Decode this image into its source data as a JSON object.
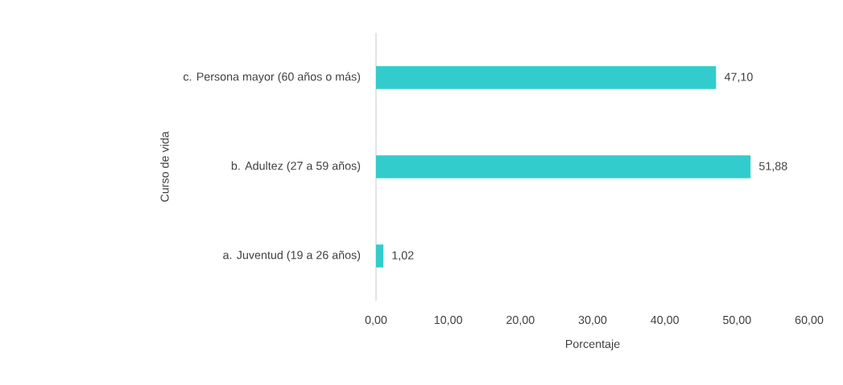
{
  "chart_data": {
    "type": "bar",
    "orientation": "horizontal",
    "categories": [
      "c. Persona mayor (60 años o más)",
      "b. Adultez (27 a 59 años)",
      "a. Juventud (19 a 26 años)"
    ],
    "values": [
      47.1,
      51.88,
      1.02
    ],
    "value_labels": [
      "47,10",
      "51,88",
      "1,02"
    ],
    "color": "#33cccc",
    "xlabel": "Porcentaje",
    "ylabel": "Curso de vida",
    "xlim": [
      0,
      60
    ],
    "xticks": [
      {
        "value": 0,
        "label": "0,00"
      },
      {
        "value": 10,
        "label": "10,00"
      },
      {
        "value": 20,
        "label": "20,00"
      },
      {
        "value": 30,
        "label": "30,00"
      },
      {
        "value": 40,
        "label": "40,00"
      },
      {
        "value": 50,
        "label": "50,00"
      },
      {
        "value": 60,
        "label": "60,00"
      }
    ],
    "grid": false
  }
}
